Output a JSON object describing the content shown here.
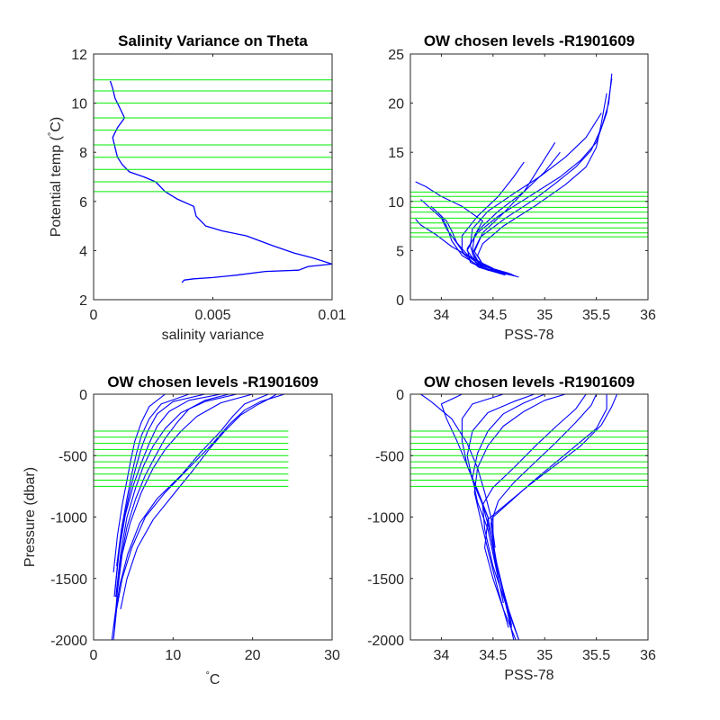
{
  "figure": {
    "background": "#ffffff",
    "profile_color": "#0000ff",
    "level_color": "#00ee00",
    "axis_color": "#262626"
  },
  "chart_data": [
    {
      "id": "p1",
      "type": "line",
      "title": "Salinity Variance on Theta",
      "xlabel": "salinity variance",
      "ylabel": "Potential temp (°C)",
      "ylabel_parts": [
        "Potential temp (",
        "°",
        "C)"
      ],
      "xlim": [
        0,
        0.01
      ],
      "ylim": [
        2,
        12
      ],
      "xticks": [
        0,
        0.005,
        0.01
      ],
      "xtick_labels": [
        "0",
        "0.005",
        "0.01"
      ],
      "yticks": [
        2,
        4,
        6,
        8,
        10,
        12
      ],
      "ytick_labels": [
        "2",
        "4",
        "6",
        "8",
        "10",
        "12"
      ],
      "grid": false,
      "series": [
        {
          "x": [
            0.0007,
            0.0008,
            0.0009,
            0.0011,
            0.0013,
            0.001,
            0.0008,
            0.0009,
            0.001,
            0.0012,
            0.0015,
            0.0021,
            0.0026,
            0.003,
            0.0035,
            0.0042,
            0.0043,
            0.0047,
            0.0054,
            0.0064,
            0.0075,
            0.0084,
            0.0092,
            0.01,
            0.009,
            0.0086,
            0.0072,
            0.006,
            0.005,
            0.0042,
            0.0038,
            0.0037
          ],
          "y": [
            10.9,
            10.6,
            10.2,
            9.8,
            9.4,
            9.0,
            8.6,
            8.2,
            7.8,
            7.5,
            7.2,
            7.0,
            6.8,
            6.4,
            6.1,
            5.8,
            5.4,
            5.0,
            4.8,
            4.6,
            4.2,
            3.9,
            3.7,
            3.45,
            3.35,
            3.2,
            3.15,
            3.0,
            2.9,
            2.85,
            2.8,
            2.7
          ]
        }
      ],
      "hlines": [
        6.4,
        6.8,
        7.3,
        7.8,
        8.3,
        8.9,
        9.4,
        10.0,
        10.5,
        10.95
      ],
      "hline_span": [
        0,
        0.01
      ]
    },
    {
      "id": "p2",
      "type": "line",
      "title": "OW chosen levels -R1901609",
      "xlabel": "PSS-78",
      "ylabel": "",
      "xlim": [
        33.7,
        36
      ],
      "ylim": [
        0,
        25
      ],
      "xticks": [
        34,
        34.5,
        35,
        35.5,
        36
      ],
      "xtick_labels": [
        "34",
        "34.5",
        "35",
        "35.5",
        "36"
      ],
      "yticks": [
        0,
        5,
        10,
        15,
        20,
        25
      ],
      "ytick_labels": [
        "0",
        "5",
        "10",
        "15",
        "20",
        "25"
      ],
      "grid": false,
      "series": [
        {
          "x": [
            34.75,
            34.55,
            34.4,
            34.35,
            34.4,
            34.6,
            34.9,
            35.2,
            35.4,
            35.5,
            35.55,
            35.6
          ],
          "y": [
            2.3,
            2.9,
            3.6,
            4.5,
            5.7,
            7.5,
            9.5,
            11.7,
            13.5,
            15.5,
            18.0,
            21.0
          ]
        },
        {
          "x": [
            34.72,
            34.45,
            34.28,
            34.25,
            34.35,
            34.55,
            34.85,
            35.15,
            35.35,
            35.5,
            35.6,
            35.65
          ],
          "y": [
            2.4,
            3.0,
            3.8,
            5.2,
            6.8,
            8.5,
            10.5,
            12.5,
            14.2,
            16.0,
            19.0,
            22.5
          ]
        },
        {
          "x": [
            34.7,
            34.4,
            34.2,
            34.1,
            34.05,
            34.0,
            33.95
          ],
          "y": [
            2.5,
            3.2,
            4.5,
            6.0,
            7.5,
            8.5,
            9.0
          ]
        },
        {
          "x": [
            34.68,
            34.42,
            34.25,
            34.15,
            34.1,
            34.05,
            33.9
          ],
          "y": [
            2.6,
            3.4,
            4.6,
            5.8,
            7.0,
            8.0,
            9.5
          ]
        },
        {
          "x": [
            34.65,
            34.38,
            34.22,
            34.12,
            34.05,
            34.0,
            33.8
          ],
          "y": [
            2.7,
            3.5,
            4.7,
            6.2,
            7.2,
            8.3,
            10.2
          ]
        },
        {
          "x": [
            34.6,
            34.35,
            34.25,
            34.35,
            34.55,
            34.8,
            35.0,
            35.15
          ],
          "y": [
            2.8,
            3.6,
            5.0,
            7.0,
            9.0,
            11.0,
            13.0,
            15.0
          ]
        },
        {
          "x": [
            34.62,
            34.36,
            34.2,
            34.2,
            34.35,
            34.55,
            34.7,
            34.8
          ],
          "y": [
            2.5,
            3.3,
            4.8,
            6.5,
            8.5,
            10.5,
            12.5,
            14.0
          ]
        },
        {
          "x": [
            34.55,
            34.33,
            34.28,
            34.3,
            34.45,
            34.7,
            34.95,
            35.2,
            35.4,
            35.55
          ],
          "y": [
            2.9,
            3.8,
            5.5,
            7.2,
            9.0,
            10.8,
            12.5,
            14.5,
            16.5,
            19.0
          ]
        },
        {
          "x": [
            34.5,
            34.35,
            34.3,
            34.32,
            34.4,
            34.2,
            34.0,
            33.85,
            33.75
          ],
          "y": [
            3.0,
            4.0,
            5.0,
            6.5,
            8.0,
            9.5,
            10.5,
            11.5,
            12.0
          ]
        },
        {
          "x": [
            34.58,
            34.4,
            34.32,
            34.4,
            34.6,
            34.8,
            34.95,
            35.1
          ],
          "y": [
            2.7,
            3.6,
            4.9,
            6.8,
            8.8,
            11.0,
            13.5,
            16.0
          ]
        },
        {
          "x": [
            34.6,
            34.38,
            34.3,
            34.38,
            34.62,
            34.9,
            35.1,
            35.3,
            35.45,
            35.55,
            35.62,
            35.65
          ],
          "y": [
            2.6,
            3.4,
            4.7,
            6.4,
            8.3,
            10.2,
            11.8,
            13.5,
            15.2,
            17.5,
            20.0,
            23.0
          ]
        },
        {
          "x": [
            34.5,
            34.3,
            34.1,
            33.95,
            33.8,
            33.75
          ],
          "y": [
            3.2,
            4.2,
            5.4,
            6.6,
            7.6,
            8.2
          ]
        }
      ],
      "hlines": [
        6.4,
        6.8,
        7.3,
        7.8,
        8.3,
        8.9,
        9.4,
        10.0,
        10.5,
        10.95
      ],
      "hline_span": [
        33.7,
        36
      ]
    },
    {
      "id": "p3",
      "type": "line",
      "title": "OW chosen levels -R1901609",
      "xlabel": "°C",
      "xlabel_parts": [
        "",
        "°",
        "C"
      ],
      "ylabel": "Pressure (dbar)",
      "xlim": [
        0,
        30
      ],
      "ylim": [
        -2000,
        0
      ],
      "xticks": [
        0,
        10,
        20,
        30
      ],
      "xtick_labels": [
        "0",
        "10",
        "20",
        "30"
      ],
      "yticks": [
        -2000,
        -1500,
        -1000,
        -500,
        0
      ],
      "ytick_labels": [
        "-2000",
        "-1500",
        "-1000",
        "-500",
        "0"
      ],
      "grid": false,
      "series": [
        {
          "x": [
            24,
            21,
            19,
            17,
            15,
            12,
            9,
            6.5,
            4.8,
            3.6,
            2.9,
            2.5
          ],
          "y": [
            0,
            -60,
            -130,
            -250,
            -400,
            -600,
            -800,
            -1000,
            -1250,
            -1500,
            -1750,
            -2000
          ]
        },
        {
          "x": [
            22,
            19,
            17.5,
            16,
            13.5,
            11,
            8,
            5.8,
            4.3,
            3.3,
            2.7,
            2.3
          ],
          "y": [
            0,
            -80,
            -180,
            -300,
            -470,
            -660,
            -850,
            -1050,
            -1300,
            -1550,
            -1800,
            -2000
          ]
        },
        {
          "x": [
            20,
            16,
            13,
            11,
            9,
            7.5,
            6,
            4.6,
            3.6,
            3.0,
            2.6
          ],
          "y": [
            0,
            -70,
            -180,
            -300,
            -450,
            -600,
            -800,
            -1050,
            -1300,
            -1600,
            -1900
          ]
        },
        {
          "x": [
            18,
            14,
            11,
            9,
            7.5,
            6.3,
            5.3,
            4.2,
            3.4,
            2.8
          ],
          "y": [
            0,
            -60,
            -150,
            -280,
            -420,
            -580,
            -760,
            -1000,
            -1300,
            -1650
          ]
        },
        {
          "x": [
            16,
            12,
            9.5,
            8,
            7,
            6,
            5,
            4,
            3.2,
            2.7
          ],
          "y": [
            0,
            -50,
            -140,
            -260,
            -400,
            -560,
            -740,
            -980,
            -1280,
            -1600
          ]
        },
        {
          "x": [
            14,
            10,
            8,
            6.8,
            6,
            5.3,
            4.6,
            3.8,
            3.1,
            2.6
          ],
          "y": [
            0,
            -60,
            -160,
            -300,
            -440,
            -600,
            -780,
            -1020,
            -1320,
            -1650
          ]
        },
        {
          "x": [
            12,
            8.5,
            7,
            6,
            5.4,
            4.8,
            4.2,
            3.5,
            2.9
          ],
          "y": [
            0,
            -80,
            -200,
            -340,
            -480,
            -650,
            -850,
            -1100,
            -1400
          ]
        },
        {
          "x": [
            9,
            7,
            6,
            5.2,
            4.7,
            4.2,
            3.6,
            3.0,
            2.5
          ],
          "y": [
            0,
            -100,
            -230,
            -380,
            -530,
            -700,
            -900,
            -1150,
            -1450
          ]
        },
        {
          "x": [
            23,
            22,
            20.5,
            18.5,
            16.5,
            14.5,
            12.5,
            10,
            7.5,
            5.5,
            4.2,
            3.4
          ],
          "y": [
            0,
            -40,
            -90,
            -170,
            -300,
            -450,
            -620,
            -820,
            -1020,
            -1250,
            -1500,
            -1750
          ]
        },
        {
          "x": [
            17,
            14,
            12,
            10.5,
            9,
            7.8,
            6.5,
            5.3,
            4.2,
            3.4,
            2.8
          ],
          "y": [
            0,
            -50,
            -120,
            -230,
            -360,
            -500,
            -660,
            -850,
            -1080,
            -1350,
            -1650
          ]
        }
      ],
      "hlines": [
        -300,
        -350,
        -400,
        -450,
        -500,
        -550,
        -600,
        -650,
        -700,
        -750
      ],
      "hline_span": [
        0,
        24.5
      ]
    },
    {
      "id": "p4",
      "type": "line",
      "title": "OW chosen levels -R1901609",
      "xlabel": "PSS-78",
      "ylabel": "",
      "xlim": [
        33.7,
        36
      ],
      "ylim": [
        -2000,
        0
      ],
      "xticks": [
        34,
        34.5,
        35,
        35.5,
        36
      ],
      "xtick_labels": [
        "34",
        "34.5",
        "35",
        "35.5",
        "36"
      ],
      "yticks": [
        -2000,
        -1500,
        -1000,
        -500,
        0
      ],
      "ytick_labels": [
        "-2000",
        "-1500",
        "-1000",
        "-500",
        "0"
      ],
      "grid": false,
      "series": [
        {
          "x": [
            35.6,
            35.6,
            35.5,
            35.3,
            35.1,
            34.9,
            34.7,
            34.5,
            34.5,
            34.55,
            34.62,
            34.7
          ],
          "y": [
            0,
            -120,
            -280,
            -420,
            -560,
            -700,
            -850,
            -1000,
            -1200,
            -1450,
            -1700,
            -2000
          ]
        },
        {
          "x": [
            35.7,
            35.65,
            35.55,
            35.35,
            35.1,
            34.85,
            34.65,
            34.45,
            34.42,
            34.5,
            34.6,
            34.72
          ],
          "y": [
            0,
            -100,
            -250,
            -420,
            -580,
            -740,
            -880,
            -1020,
            -1250,
            -1500,
            -1750,
            -2000
          ]
        },
        {
          "x": [
            35.4,
            35.3,
            35.1,
            34.9,
            34.7,
            34.5,
            34.4,
            34.42,
            34.5,
            34.62,
            34.75
          ],
          "y": [
            0,
            -120,
            -270,
            -430,
            -600,
            -760,
            -900,
            -1100,
            -1400,
            -1700,
            -2000
          ]
        },
        {
          "x": [
            34.9,
            34.7,
            34.45,
            34.3,
            34.25,
            34.3,
            34.4,
            34.48,
            34.55,
            34.65,
            34.75
          ],
          "y": [
            0,
            -60,
            -150,
            -300,
            -500,
            -700,
            -900,
            -1150,
            -1450,
            -1750,
            -2000
          ]
        },
        {
          "x": [
            34.6,
            34.3,
            34.2,
            34.2,
            34.25,
            34.35,
            34.45,
            34.5,
            34.58,
            34.68
          ],
          "y": [
            0,
            -80,
            -200,
            -380,
            -580,
            -800,
            -1000,
            -1250,
            -1550,
            -1900
          ]
        },
        {
          "x": [
            34.2,
            34.0,
            34.05,
            34.15,
            34.25,
            34.35,
            34.45,
            34.5,
            34.55
          ],
          "y": [
            0,
            -80,
            -200,
            -380,
            -580,
            -780,
            -1000,
            -1250,
            -1500
          ]
        },
        {
          "x": [
            35.0,
            34.8,
            34.6,
            34.45,
            34.35,
            34.3,
            34.35,
            34.45,
            34.52,
            34.6
          ],
          "y": [
            0,
            -70,
            -160,
            -300,
            -480,
            -680,
            -880,
            -1100,
            -1380,
            -1700
          ]
        },
        {
          "x": [
            33.8,
            33.9,
            34.1,
            34.25,
            34.35,
            34.42,
            34.48,
            34.52
          ],
          "y": [
            0,
            -60,
            -200,
            -400,
            -600,
            -800,
            -1000,
            -1250
          ]
        },
        {
          "x": [
            35.2,
            35.0,
            34.8,
            34.6,
            34.45,
            34.35,
            34.32,
            34.38,
            34.46,
            34.55,
            34.65
          ],
          "y": [
            0,
            -50,
            -140,
            -260,
            -420,
            -600,
            -800,
            -1020,
            -1300,
            -1600,
            -1900
          ]
        },
        {
          "x": [
            35.5,
            35.45,
            35.3,
            35.1,
            34.9,
            34.7,
            34.55,
            34.48,
            34.52,
            34.6,
            34.68
          ],
          "y": [
            0,
            -90,
            -230,
            -400,
            -560,
            -720,
            -870,
            -1050,
            -1320,
            -1600,
            -1880
          ]
        }
      ],
      "hlines": [
        -300,
        -350,
        -400,
        -450,
        -500,
        -550,
        -600,
        -650,
        -700,
        -750
      ],
      "hline_span": [
        33.7,
        36
      ]
    }
  ]
}
